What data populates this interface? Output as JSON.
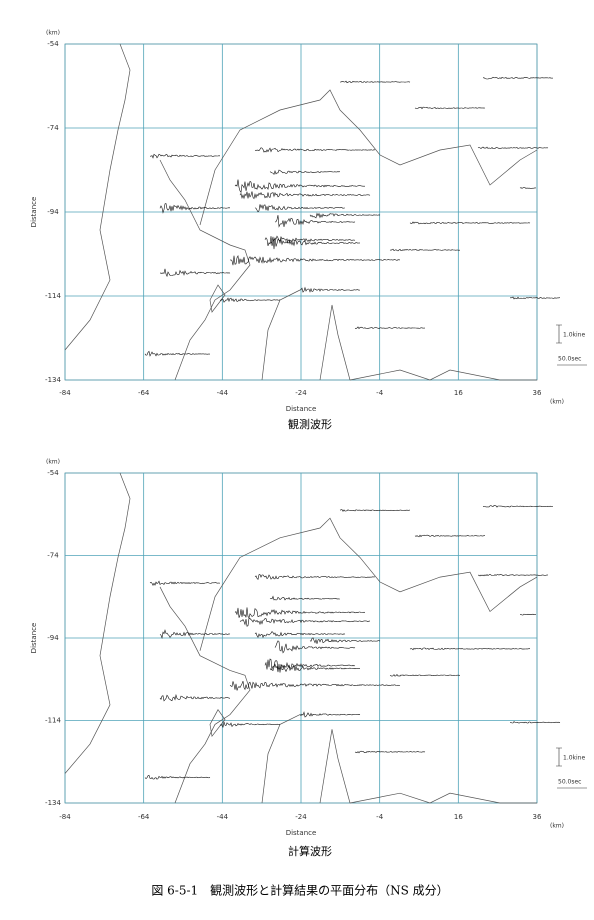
{
  "caption": "図 6-5-1　観測波形と計算結果の平面分布（NS 成分）",
  "chart_data": [
    {
      "type": "waveform-map",
      "title": "観測波形",
      "xlabel": "Distance",
      "ylabel": "Distance",
      "x_unit": "(km)",
      "y_unit": "(km)",
      "xlim": [
        -84,
        36
      ],
      "ylim": [
        -134,
        -54
      ],
      "xticks": [
        -84,
        -64,
        -44,
        -24,
        -4,
        16,
        36
      ],
      "yticks": [
        -54,
        -74,
        -94,
        -114,
        -134
      ],
      "grid": true,
      "grid_color": "#4fa3b8",
      "amplitude_scale": "1.0kine",
      "time_scale": "50.0sec"
    },
    {
      "type": "waveform-map",
      "title": "計算波形",
      "xlabel": "Distance",
      "ylabel": "Distance",
      "x_unit": "(km)",
      "y_unit": "(km)",
      "xlim": [
        -84,
        36
      ],
      "ylim": [
        -134,
        -54
      ],
      "xticks": [
        -84,
        -64,
        -44,
        -24,
        -4,
        16,
        36
      ],
      "yticks": [
        -54,
        -74,
        -94,
        -114,
        -134
      ],
      "grid": true,
      "grid_color": "#4fa3b8",
      "amplitude_scale": "1.0kine",
      "time_scale": "50.0sec"
    }
  ]
}
